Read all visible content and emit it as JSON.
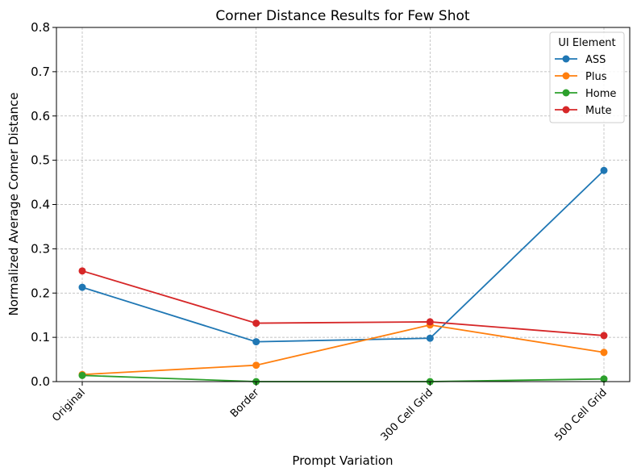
{
  "chart_data": {
    "type": "line",
    "title": "Corner Distance Results for Few Shot",
    "xlabel": "Prompt Variation",
    "ylabel": "Normalized Average Corner Distance",
    "categories": [
      "Original",
      "Border",
      "300 Cell Grid",
      "500 Cell Grid"
    ],
    "ylim": [
      0,
      0.8
    ],
    "yticks": [
      "0.0",
      "0.1",
      "0.2",
      "0.3",
      "0.4",
      "0.5",
      "0.6",
      "0.7",
      "0.8"
    ],
    "grid": true,
    "legend": {
      "title": "UI Element",
      "placement": "top-right"
    },
    "series": [
      {
        "name": "ASS",
        "color": "#1f77b4",
        "values": [
          0.213,
          0.09,
          0.098,
          0.477
        ]
      },
      {
        "name": "Plus",
        "color": "#ff7f0e",
        "values": [
          0.016,
          0.037,
          0.128,
          0.066
        ]
      },
      {
        "name": "Home",
        "color": "#2ca02c",
        "values": [
          0.014,
          0.0,
          0.0,
          0.006
        ]
      },
      {
        "name": "Mute",
        "color": "#d62728",
        "values": [
          0.25,
          0.132,
          0.135,
          0.104
        ]
      }
    ]
  }
}
